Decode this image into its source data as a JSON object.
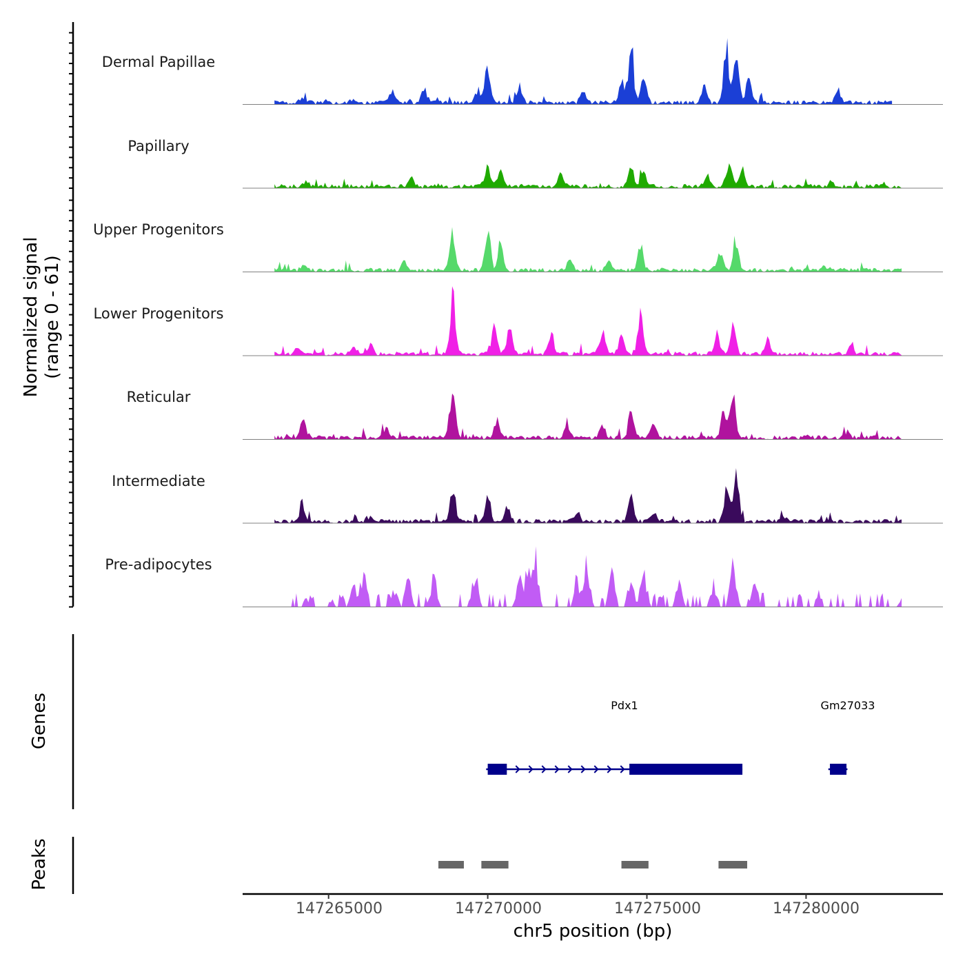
{
  "y_axis": {
    "signal_title_line1": "Normalized signal",
    "signal_title_line2": "(range 0 - 61)",
    "genes_title": "Genes",
    "peaks_title": "Peaks"
  },
  "chart_data": {
    "type": "area",
    "title": "",
    "xlabel": "chr5 position (bp)",
    "ylabel": "Normalized signal (range 0 - 61)",
    "xlim": [
      147262300,
      147284300
    ],
    "ylim": [
      0,
      61
    ],
    "x_ticks": [
      147265000,
      147270000,
      147275000,
      147280000
    ],
    "x_tick_labels": [
      "147265000",
      "147270000",
      "147275000",
      "147280000"
    ],
    "tracks": [
      {
        "name": "Dermal Papillae",
        "color": "#1b3fd6",
        "x_start": 147263300,
        "x_end": 147282700,
        "profile": "density",
        "peaks": [
          [
            147270000,
            41
          ],
          [
            147269700,
            15
          ],
          [
            147271000,
            18
          ],
          [
            147274500,
            61
          ],
          [
            147274200,
            25
          ],
          [
            147274900,
            30
          ],
          [
            147277500,
            58
          ],
          [
            147277800,
            50
          ],
          [
            147276800,
            18
          ],
          [
            147273000,
            12
          ],
          [
            147278200,
            30
          ],
          [
            147267000,
            12
          ],
          [
            147268000,
            15
          ],
          [
            147281000,
            13
          ],
          [
            147264200,
            6
          ],
          [
            147265800,
            5
          ]
        ]
      },
      {
        "name": "Papillary",
        "color": "#1faa00",
        "x_start": 147263300,
        "x_end": 147283000,
        "profile": "density",
        "peaks": [
          [
            147270000,
            20
          ],
          [
            147270400,
            18
          ],
          [
            147274500,
            22
          ],
          [
            147274900,
            18
          ],
          [
            147277600,
            26
          ],
          [
            147278000,
            20
          ],
          [
            147276900,
            14
          ],
          [
            147272300,
            12
          ],
          [
            147267600,
            10
          ],
          [
            147264300,
            6
          ],
          [
            147280800,
            6
          ]
        ]
      },
      {
        "name": "Upper Progenitors",
        "color": "#55d96a",
        "x_start": 147263300,
        "x_end": 147283000,
        "profile": "density",
        "peaks": [
          [
            147268900,
            45
          ],
          [
            147270000,
            42
          ],
          [
            147270400,
            28
          ],
          [
            147274800,
            25
          ],
          [
            147277800,
            34
          ],
          [
            147277300,
            16
          ],
          [
            147272600,
            12
          ],
          [
            147267400,
            10
          ],
          [
            147273800,
            10
          ],
          [
            147264200,
            4
          ],
          [
            147280600,
            4
          ]
        ]
      },
      {
        "name": "Lower Progenitors",
        "color": "#f020e6",
        "x_start": 147263300,
        "x_end": 147283000,
        "profile": "density",
        "peaks": [
          [
            147268900,
            61
          ],
          [
            147270200,
            30
          ],
          [
            147270700,
            32
          ],
          [
            147274800,
            39
          ],
          [
            147274200,
            24
          ],
          [
            147277700,
            33
          ],
          [
            147277200,
            22
          ],
          [
            147272000,
            20
          ],
          [
            147273600,
            24
          ],
          [
            147278800,
            18
          ],
          [
            147266300,
            10
          ],
          [
            147264000,
            6
          ],
          [
            147265800,
            8
          ],
          [
            147281400,
            8
          ]
        ]
      },
      {
        "name": "Reticular",
        "color": "#b0139e",
        "x_start": 147263300,
        "x_end": 147283000,
        "profile": "density",
        "peaks": [
          [
            147268900,
            60
          ],
          [
            147274500,
            28
          ],
          [
            147275200,
            20
          ],
          [
            147277700,
            46
          ],
          [
            147277400,
            28
          ],
          [
            147264200,
            16
          ],
          [
            147270300,
            18
          ],
          [
            147272500,
            16
          ],
          [
            147273600,
            14
          ],
          [
            147266800,
            10
          ],
          [
            147281300,
            6
          ]
        ]
      },
      {
        "name": "Intermediate",
        "color": "#3a0a5c",
        "x_start": 147263300,
        "x_end": 147283000,
        "profile": "density",
        "peaks": [
          [
            147268900,
            37
          ],
          [
            147270000,
            27
          ],
          [
            147274500,
            26
          ],
          [
            147277800,
            61
          ],
          [
            147277500,
            30
          ],
          [
            147264200,
            14
          ],
          [
            147270600,
            16
          ],
          [
            147275200,
            12
          ],
          [
            147272800,
            8
          ],
          [
            147266300,
            6
          ],
          [
            147279300,
            6
          ]
        ]
      },
      {
        "name": "Pre-adipocytes",
        "color": "#c15cf5",
        "x_start": 147263500,
        "x_end": 147283000,
        "profile": "spiky",
        "peaks": [
          [
            147266100,
            40
          ],
          [
            147265800,
            25
          ],
          [
            147267500,
            30
          ],
          [
            147268300,
            30
          ],
          [
            147269600,
            35
          ],
          [
            147271300,
            58
          ],
          [
            147271500,
            55
          ],
          [
            147271000,
            35
          ],
          [
            147273100,
            55
          ],
          [
            147272800,
            30
          ],
          [
            147273900,
            35
          ],
          [
            147274500,
            35
          ],
          [
            147274900,
            38
          ],
          [
            147277700,
            43
          ],
          [
            147277100,
            25
          ],
          [
            147278400,
            25
          ],
          [
            147276000,
            25
          ],
          [
            147267100,
            20
          ],
          [
            147280400,
            15
          ],
          [
            147264300,
            8
          ],
          [
            147265100,
            8
          ],
          [
            147283000,
            8
          ]
        ]
      }
    ],
    "genes": [
      {
        "name": "Pdx1",
        "strand": "+",
        "start": 147269950,
        "end": 147278000,
        "label_x": 147274300,
        "exons": [
          [
            147270000,
            147270600
          ],
          [
            147274450,
            147278000
          ]
        ]
      },
      {
        "name": "Gm27033",
        "strand": "+",
        "start": 147280700,
        "end": 147281300,
        "label_x": 147281000,
        "exons": [
          [
            147280750,
            147281270
          ]
        ]
      }
    ],
    "peaks_track": [
      [
        147268450,
        147269250
      ],
      [
        147269800,
        147270650
      ],
      [
        147274200,
        147275050
      ],
      [
        147277250,
        147278150
      ]
    ],
    "peak_color": "#666666",
    "gene_color": "#00008b"
  }
}
